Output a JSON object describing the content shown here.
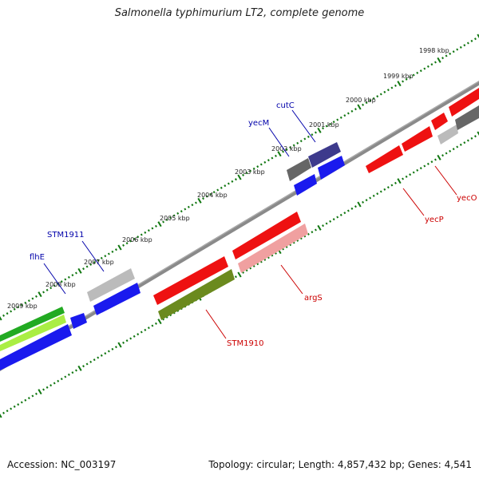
{
  "title": "Salmonella typhimurium LT2, complete genome",
  "footer": {
    "accession": "Accession: NC_003197",
    "stats": "Topology: circular; Length: 4,857,432 bp; Genes: 4,541"
  },
  "colors": {
    "backbone": "#808080",
    "ticks": "#117711",
    "forward_red": "#ee1111",
    "pink": "#f0a0a0",
    "blue": "#1a1aee",
    "gray": "#bbbbbb",
    "dark_gray": "#666666",
    "navy": "#3a3a8a",
    "olive": "#6b8a1e",
    "green": "#22aa22",
    "lime": "#aaee44"
  },
  "scale_labels": [
    "1998 kbp",
    "1999 kbp",
    "2000 kbp",
    "2001 kbp",
    "2002 kbp",
    "2003 kbp",
    "2004 kbp",
    "2005 kbp",
    "2006 kbp",
    "2007 kbp",
    "2008 kbp",
    "2009 kbp"
  ],
  "genes": [
    {
      "name": "yecO",
      "color": "#cc0000"
    },
    {
      "name": "yecP",
      "color": "#cc0000"
    },
    {
      "name": "cutC",
      "color": "#0000aa"
    },
    {
      "name": "yecM",
      "color": "#0000aa"
    },
    {
      "name": "argS",
      "color": "#cc0000"
    },
    {
      "name": "STM1910",
      "color": "#cc0000"
    },
    {
      "name": "STM1911",
      "color": "#0000aa"
    },
    {
      "name": "flhE",
      "color": "#0000aa"
    }
  ]
}
